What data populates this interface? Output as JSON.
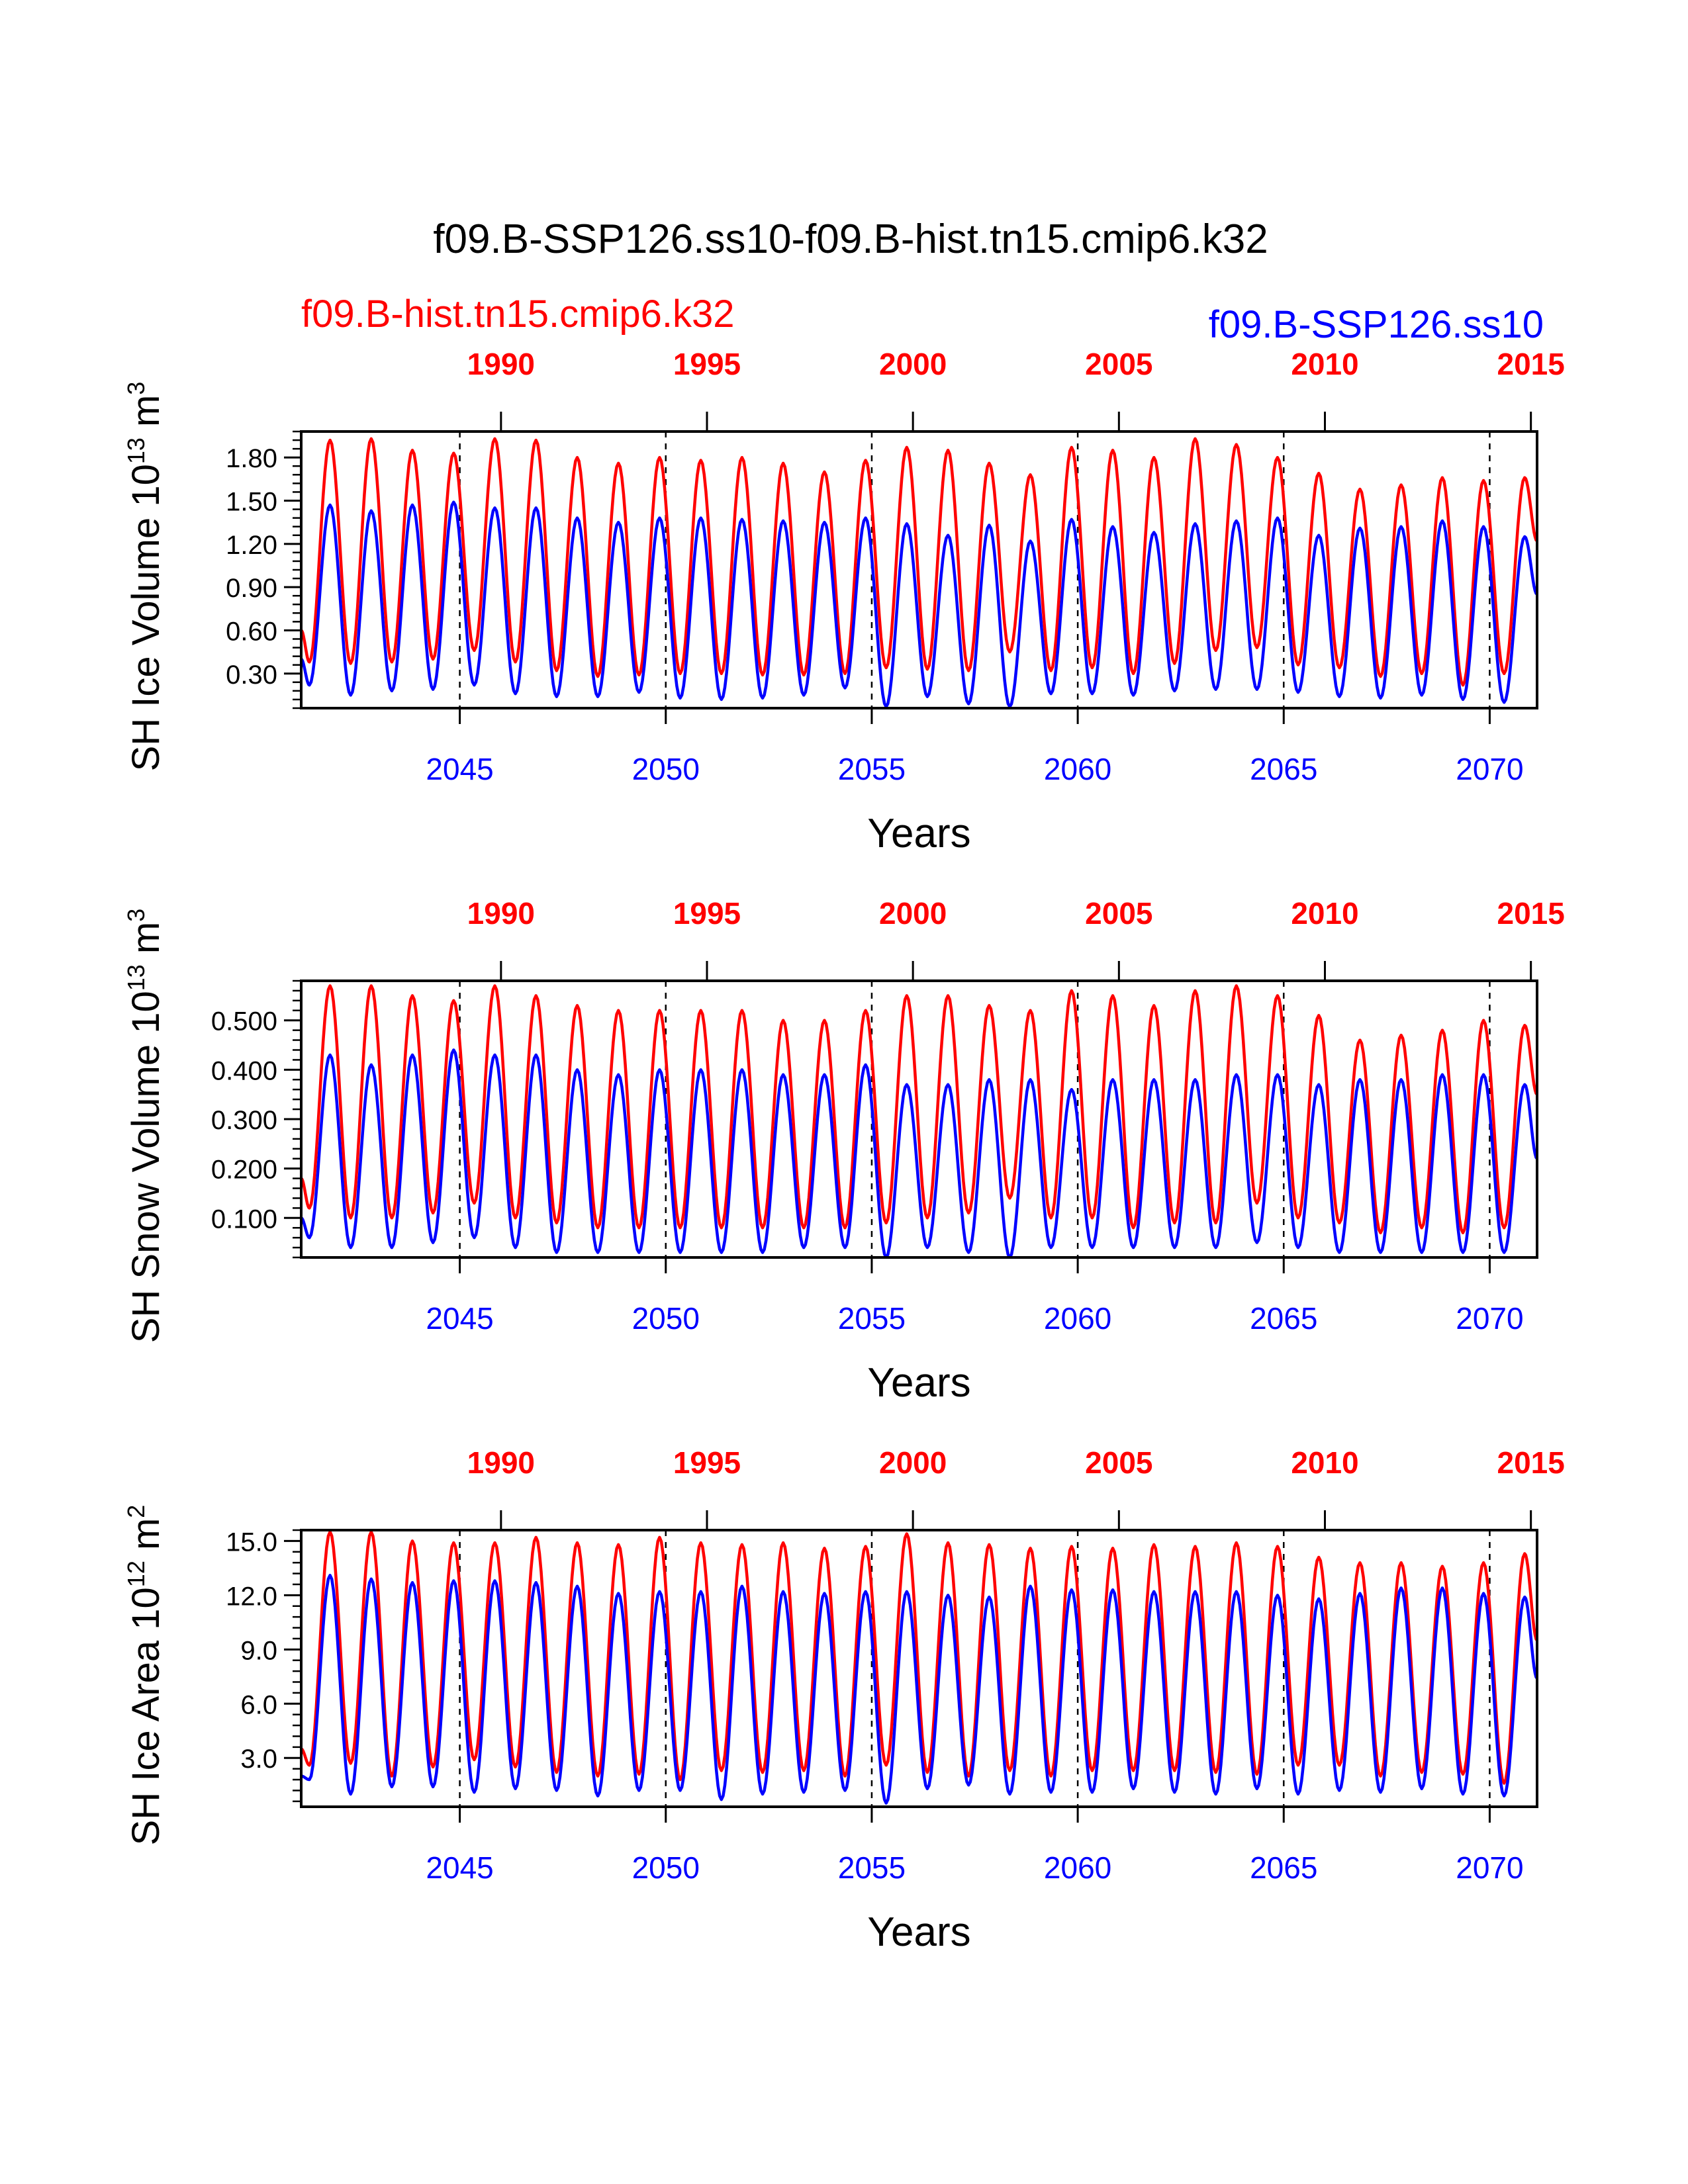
{
  "title": "f09.B-SSP126.ss10-f09.B-hist.tn15.cmip6.k32",
  "legend": {
    "left_label": "f09.B-hist.tn15.cmip6.k32",
    "right_label": "f09.B-SSP126.ss10"
  },
  "colors": {
    "hist": "#ff0000",
    "ssp": "#0000ff",
    "frame": "#000000"
  },
  "chart_data": [
    {
      "type": "line",
      "ylabel_main": "SH Ice Volume 10",
      "ylabel_exp": "13",
      "ylabel_unit": " m",
      "ylabel_unit_exp": "3",
      "xlabel": "Years",
      "xlim": [
        2041.15,
        2071.15
      ],
      "ylim": [
        0.06,
        1.98
      ],
      "yticks": [
        0.3,
        0.6,
        0.9,
        1.2,
        1.5,
        1.8
      ],
      "ytick_labels": [
        "0.30",
        "0.60",
        "0.90",
        "1.20",
        "1.50",
        "1.80"
      ],
      "bottom_ticks": [
        2045,
        2050,
        2055,
        2060,
        2065,
        2070
      ],
      "bottom_tick_labels": [
        "2045",
        "2050",
        "2055",
        "2060",
        "2065",
        "2070"
      ],
      "top_ticks": [
        2046,
        2051,
        2056,
        2061,
        2066,
        2071
      ],
      "top_tick_labels": [
        "1990",
        "1995",
        "2000",
        "2005",
        "2010",
        "2015"
      ],
      "year_start": 2041.15,
      "series": [
        {
          "name": "f09.B-hist.tn15.cmip6.k32",
          "color": "#ff0000",
          "start_value": 0.6,
          "annual_max": [
            1.92,
            1.93,
            1.85,
            1.83,
            1.93,
            1.92,
            1.8,
            1.76,
            1.8,
            1.78,
            1.8,
            1.76,
            1.7,
            1.78,
            1.87,
            1.85,
            1.76,
            1.68,
            1.87,
            1.85,
            1.8,
            1.93,
            1.89,
            1.8,
            1.69,
            1.58,
            1.61,
            1.66,
            1.64,
            1.66
          ],
          "annual_min": [
            0.38,
            0.37,
            0.38,
            0.4,
            0.46,
            0.38,
            0.32,
            0.28,
            0.29,
            0.3,
            0.3,
            0.29,
            0.29,
            0.3,
            0.34,
            0.33,
            0.32,
            0.45,
            0.32,
            0.34,
            0.3,
            0.37,
            0.46,
            0.48,
            0.36,
            0.34,
            0.28,
            0.3,
            0.22,
            0.3
          ],
          "end_value": 1.22
        },
        {
          "name": "f09.B-SSP126.ss10",
          "color": "#0000ff",
          "start_value": 0.4,
          "annual_max": [
            1.47,
            1.43,
            1.47,
            1.49,
            1.45,
            1.45,
            1.38,
            1.35,
            1.38,
            1.38,
            1.37,
            1.36,
            1.35,
            1.38,
            1.34,
            1.26,
            1.33,
            1.22,
            1.37,
            1.32,
            1.28,
            1.34,
            1.36,
            1.38,
            1.26,
            1.31,
            1.32,
            1.36,
            1.32,
            1.25
          ],
          "annual_min": [
            0.22,
            0.15,
            0.18,
            0.19,
            0.22,
            0.16,
            0.14,
            0.14,
            0.17,
            0.13,
            0.12,
            0.13,
            0.15,
            0.2,
            0.07,
            0.14,
            0.09,
            0.07,
            0.16,
            0.16,
            0.15,
            0.18,
            0.19,
            0.19,
            0.17,
            0.14,
            0.13,
            0.15,
            0.12,
            0.1
          ],
          "end_value": 0.85
        }
      ]
    },
    {
      "type": "line",
      "ylabel_main": "SH Snow Volume 10",
      "ylabel_exp": "13",
      "ylabel_unit": " m",
      "ylabel_unit_exp": "3",
      "xlabel": "Years",
      "xlim": [
        2041.15,
        2071.15
      ],
      "ylim": [
        0.02,
        0.58
      ],
      "yticks": [
        0.1,
        0.2,
        0.3,
        0.4,
        0.5
      ],
      "ytick_labels": [
        "0.100",
        "0.200",
        "0.300",
        "0.400",
        "0.500"
      ],
      "bottom_ticks": [
        2045,
        2050,
        2055,
        2060,
        2065,
        2070
      ],
      "bottom_tick_labels": [
        "2045",
        "2050",
        "2055",
        "2060",
        "2065",
        "2070"
      ],
      "top_ticks": [
        2046,
        2051,
        2056,
        2061,
        2066,
        2071
      ],
      "top_tick_labels": [
        "1990",
        "1995",
        "2000",
        "2005",
        "2010",
        "2015"
      ],
      "year_start": 2041.15,
      "series": [
        {
          "name": "f09.B-hist.tn15.cmip6.k32",
          "color": "#ff0000",
          "start_value": 0.18,
          "annual_max": [
            0.57,
            0.57,
            0.55,
            0.54,
            0.57,
            0.55,
            0.53,
            0.52,
            0.52,
            0.52,
            0.52,
            0.5,
            0.5,
            0.52,
            0.55,
            0.55,
            0.53,
            0.52,
            0.56,
            0.55,
            0.53,
            0.56,
            0.57,
            0.55,
            0.51,
            0.46,
            0.47,
            0.48,
            0.5,
            0.49
          ],
          "annual_min": [
            0.12,
            0.1,
            0.1,
            0.11,
            0.13,
            0.1,
            0.09,
            0.08,
            0.08,
            0.08,
            0.08,
            0.08,
            0.08,
            0.08,
            0.09,
            0.1,
            0.11,
            0.14,
            0.1,
            0.1,
            0.08,
            0.09,
            0.09,
            0.13,
            0.1,
            0.09,
            0.07,
            0.08,
            0.07,
            0.08
          ],
          "end_value": 0.35
        },
        {
          "name": "f09.B-SSP126.ss10",
          "color": "#0000ff",
          "start_value": 0.1,
          "annual_max": [
            0.43,
            0.41,
            0.43,
            0.44,
            0.43,
            0.43,
            0.4,
            0.39,
            0.4,
            0.4,
            0.4,
            0.39,
            0.39,
            0.41,
            0.37,
            0.37,
            0.38,
            0.38,
            0.36,
            0.38,
            0.38,
            0.38,
            0.39,
            0.39,
            0.37,
            0.38,
            0.38,
            0.39,
            0.39,
            0.37
          ],
          "annual_min": [
            0.06,
            0.04,
            0.04,
            0.05,
            0.06,
            0.04,
            0.03,
            0.03,
            0.03,
            0.03,
            0.03,
            0.03,
            0.04,
            0.04,
            0.02,
            0.04,
            0.03,
            0.02,
            0.04,
            0.04,
            0.04,
            0.04,
            0.04,
            0.05,
            0.04,
            0.03,
            0.03,
            0.03,
            0.03,
            0.03
          ],
          "end_value": 0.22
        }
      ]
    },
    {
      "type": "line",
      "ylabel_main": "SH Ice Area 10",
      "ylabel_exp": "12",
      "ylabel_unit": " m",
      "ylabel_unit_exp": "2",
      "xlabel": "Years",
      "xlim": [
        2041.15,
        2071.15
      ],
      "ylim": [
        0.3,
        15.6
      ],
      "yticks": [
        3,
        6,
        9,
        12,
        15
      ],
      "ytick_labels": [
        "3.0",
        "6.0",
        "9.0",
        "12.0",
        "15.0"
      ],
      "bottom_ticks": [
        2045,
        2050,
        2055,
        2060,
        2065,
        2070
      ],
      "bottom_tick_labels": [
        "2045",
        "2050",
        "2055",
        "2060",
        "2065",
        "2070"
      ],
      "top_ticks": [
        2046,
        2051,
        2056,
        2061,
        2066,
        2071
      ],
      "top_tick_labels": [
        "1990",
        "1995",
        "2000",
        "2005",
        "2010",
        "2015"
      ],
      "year_start": 2041.15,
      "series": [
        {
          "name": "f09.B-hist.tn15.cmip6.k32",
          "color": "#ff0000",
          "start_value": 3.5,
          "annual_max": [
            15.5,
            15.5,
            15.0,
            14.9,
            14.9,
            15.2,
            14.9,
            14.8,
            15.2,
            14.9,
            14.8,
            14.9,
            14.6,
            14.7,
            15.4,
            14.9,
            14.8,
            14.6,
            14.7,
            14.6,
            14.8,
            14.7,
            14.9,
            14.7,
            14.1,
            13.8,
            13.8,
            13.6,
            13.8,
            14.3
          ],
          "annual_min": [
            2.6,
            2.7,
            2.0,
            2.5,
            2.9,
            2.5,
            2.2,
            2.0,
            2.1,
            1.8,
            2.3,
            2.2,
            2.3,
            2.0,
            2.6,
            2.2,
            2.0,
            2.3,
            2.0,
            2.3,
            2.3,
            2.3,
            2.2,
            2.1,
            2.6,
            2.6,
            2.0,
            2.2,
            2.1,
            1.6
          ],
          "end_value": 9.5
        },
        {
          "name": "f09.B-SSP126.ss10",
          "color": "#0000ff",
          "start_value": 2.0,
          "annual_max": [
            13.1,
            12.9,
            12.7,
            12.8,
            12.8,
            12.7,
            12.5,
            12.1,
            12.2,
            12.2,
            12.5,
            12.2,
            12.1,
            12.2,
            12.2,
            12.0,
            11.9,
            12.5,
            12.3,
            12.3,
            12.2,
            12.2,
            12.2,
            12.0,
            11.8,
            12.1,
            12.4,
            12.4,
            12.1,
            11.9
          ],
          "annual_min": [
            1.8,
            1.0,
            1.4,
            1.4,
            1.1,
            1.3,
            1.2,
            0.9,
            1.2,
            1.2,
            0.7,
            1.0,
            1.1,
            1.2,
            0.5,
            1.3,
            1.5,
            1.0,
            1.1,
            1.1,
            1.3,
            1.1,
            1.0,
            1.3,
            1.0,
            1.2,
            1.1,
            1.3,
            1.0,
            0.9
          ],
          "end_value": 7.4
        }
      ]
    }
  ]
}
